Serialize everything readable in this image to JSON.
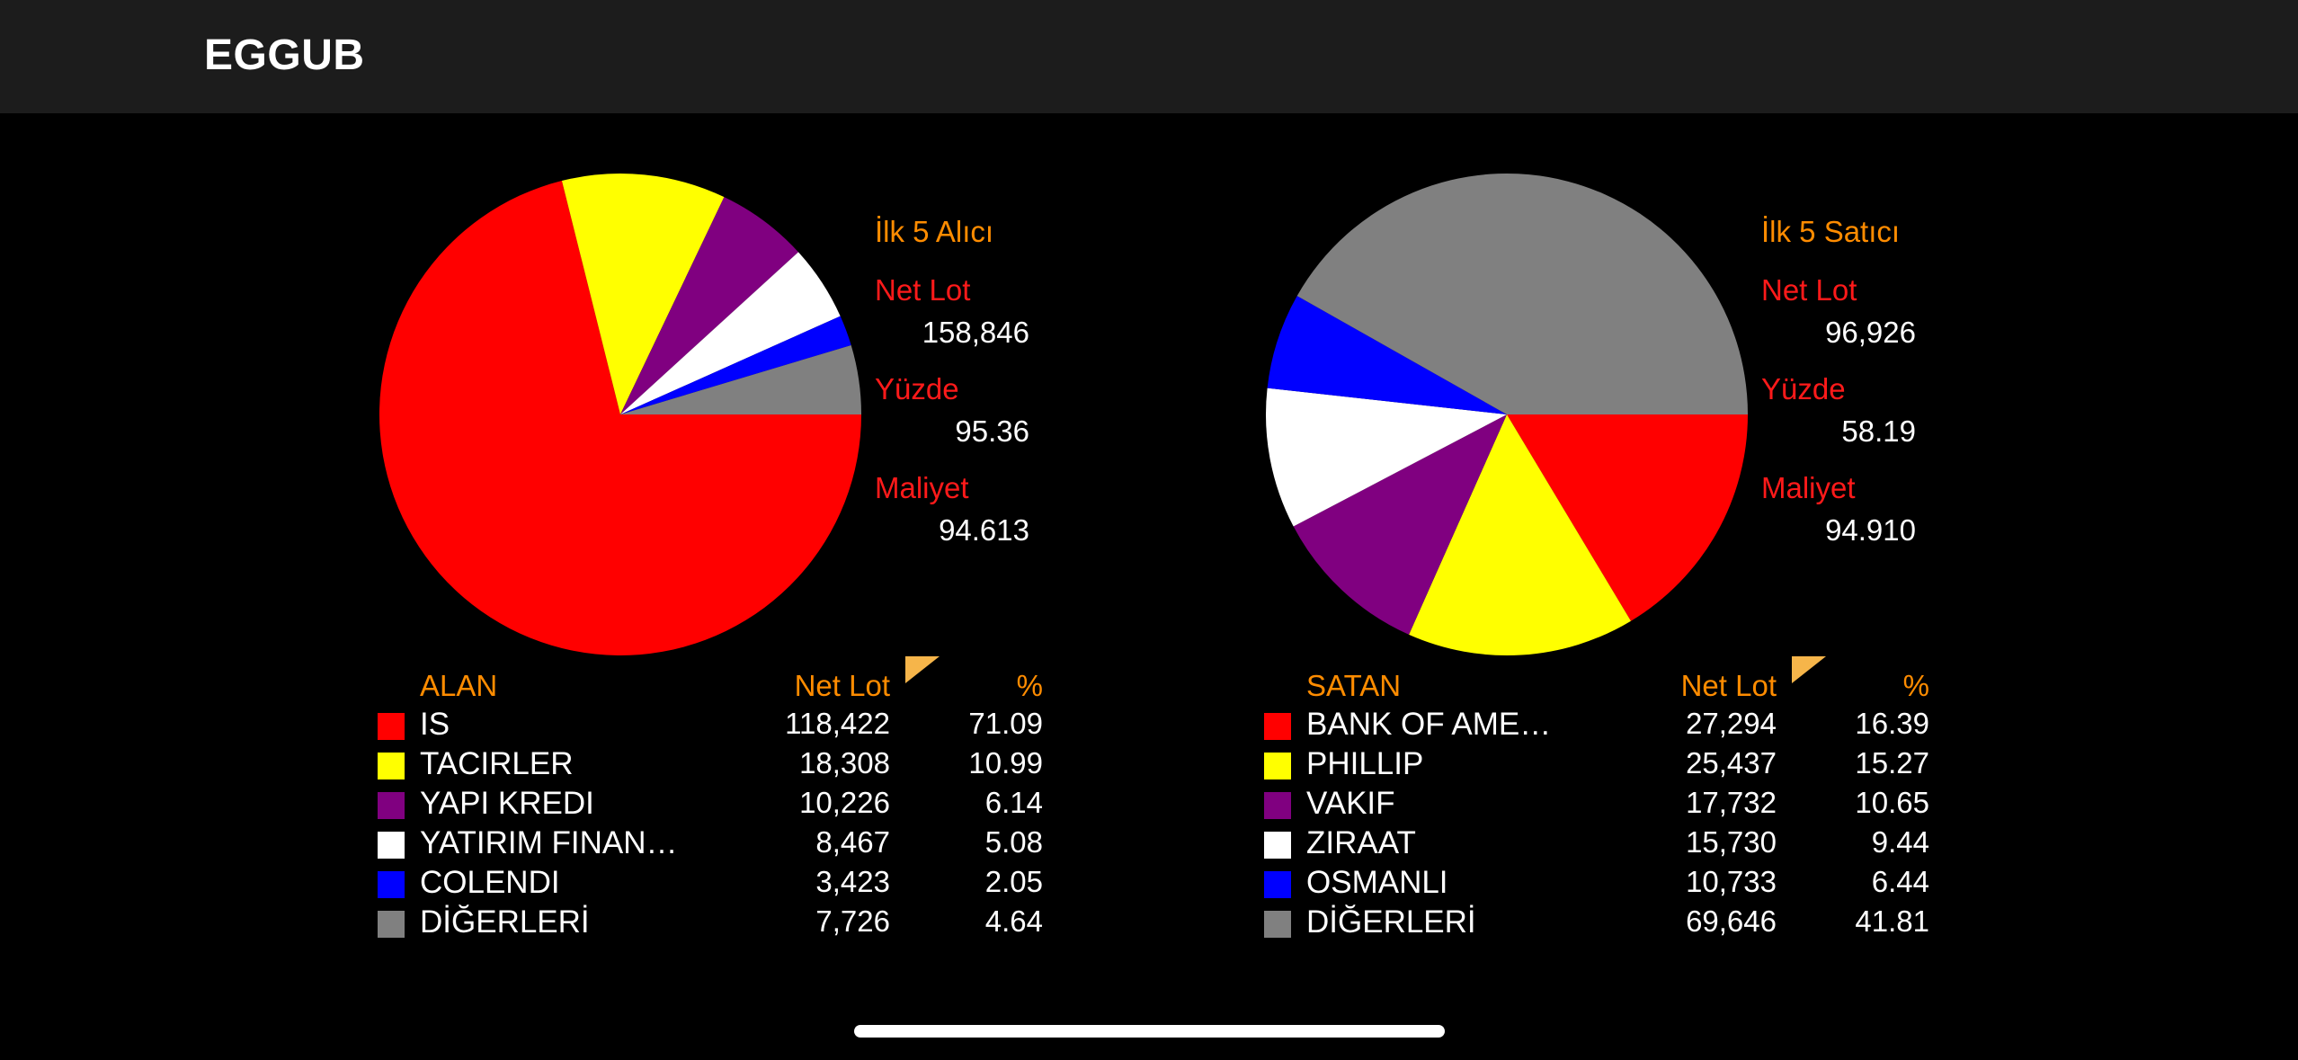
{
  "header": {
    "title": "EGGUB"
  },
  "buyers": {
    "title": "İlk 5 Alıcı",
    "net_lot_label": "Net Lot",
    "net_lot_value": "158,846",
    "percent_label": "Yüzde",
    "percent_value": "95.36",
    "cost_label": "Maliyet",
    "cost_value": "94.613",
    "columns": {
      "name": "ALAN",
      "lot": "Net Lot",
      "pct": "%"
    },
    "rows": [
      {
        "name": "IS",
        "lot": "118,422",
        "pct": "71.09",
        "color": "#ff0000"
      },
      {
        "name": "TACIRLER",
        "lot": "18,308",
        "pct": "10.99",
        "color": "#ffff00"
      },
      {
        "name": "YAPI KREDI",
        "lot": "10,226",
        "pct": "6.14",
        "color": "#800080"
      },
      {
        "name": "YATIRIM FINAN…",
        "lot": "8,467",
        "pct": "5.08",
        "color": "#ffffff"
      },
      {
        "name": "COLENDI",
        "lot": "3,423",
        "pct": "2.05",
        "color": "#0000ff"
      },
      {
        "name": "DİĞERLERİ",
        "lot": "7,726",
        "pct": "4.64",
        "color": "#808080"
      }
    ]
  },
  "sellers": {
    "title": "İlk 5 Satıcı",
    "net_lot_label": "Net Lot",
    "net_lot_value": "96,926",
    "percent_label": "Yüzde",
    "percent_value": "58.19",
    "cost_label": "Maliyet",
    "cost_value": "94.910",
    "columns": {
      "name": "SATAN",
      "lot": "Net Lot",
      "pct": "%"
    },
    "rows": [
      {
        "name": "BANK OF AME…",
        "lot": "27,294",
        "pct": "16.39",
        "color": "#ff0000"
      },
      {
        "name": "PHILLIP",
        "lot": "25,437",
        "pct": "15.27",
        "color": "#ffff00"
      },
      {
        "name": "VAKIF",
        "lot": "17,732",
        "pct": "10.65",
        "color": "#800080"
      },
      {
        "name": "ZIRAAT",
        "lot": "15,730",
        "pct": "9.44",
        "color": "#ffffff"
      },
      {
        "name": "OSMANLI",
        "lot": "10,733",
        "pct": "6.44",
        "color": "#0000ff"
      },
      {
        "name": "DİĞERLERİ",
        "lot": "69,646",
        "pct": "41.81",
        "color": "#808080"
      }
    ]
  },
  "chart_data": [
    {
      "type": "pie",
      "categories": [
        "IS",
        "TACIRLER",
        "YAPI KREDI",
        "YATIRIM FINAN…",
        "COLENDI",
        "DİĞERLERİ"
      ],
      "values": [
        71.09,
        10.99,
        6.14,
        5.08,
        2.05,
        4.64
      ],
      "colors": [
        "#ff0000",
        "#ffff00",
        "#800080",
        "#ffffff",
        "#0000ff",
        "#808080"
      ]
    },
    {
      "type": "pie",
      "categories": [
        "BANK OF AME…",
        "PHILLIP",
        "VAKIF",
        "ZIRAAT",
        "OSMANLI",
        "DİĞERLERİ"
      ],
      "values": [
        16.39,
        15.27,
        10.65,
        9.44,
        6.44,
        41.81
      ],
      "colors": [
        "#ff0000",
        "#ffff00",
        "#800080",
        "#ffffff",
        "#0000ff",
        "#808080"
      ]
    }
  ]
}
